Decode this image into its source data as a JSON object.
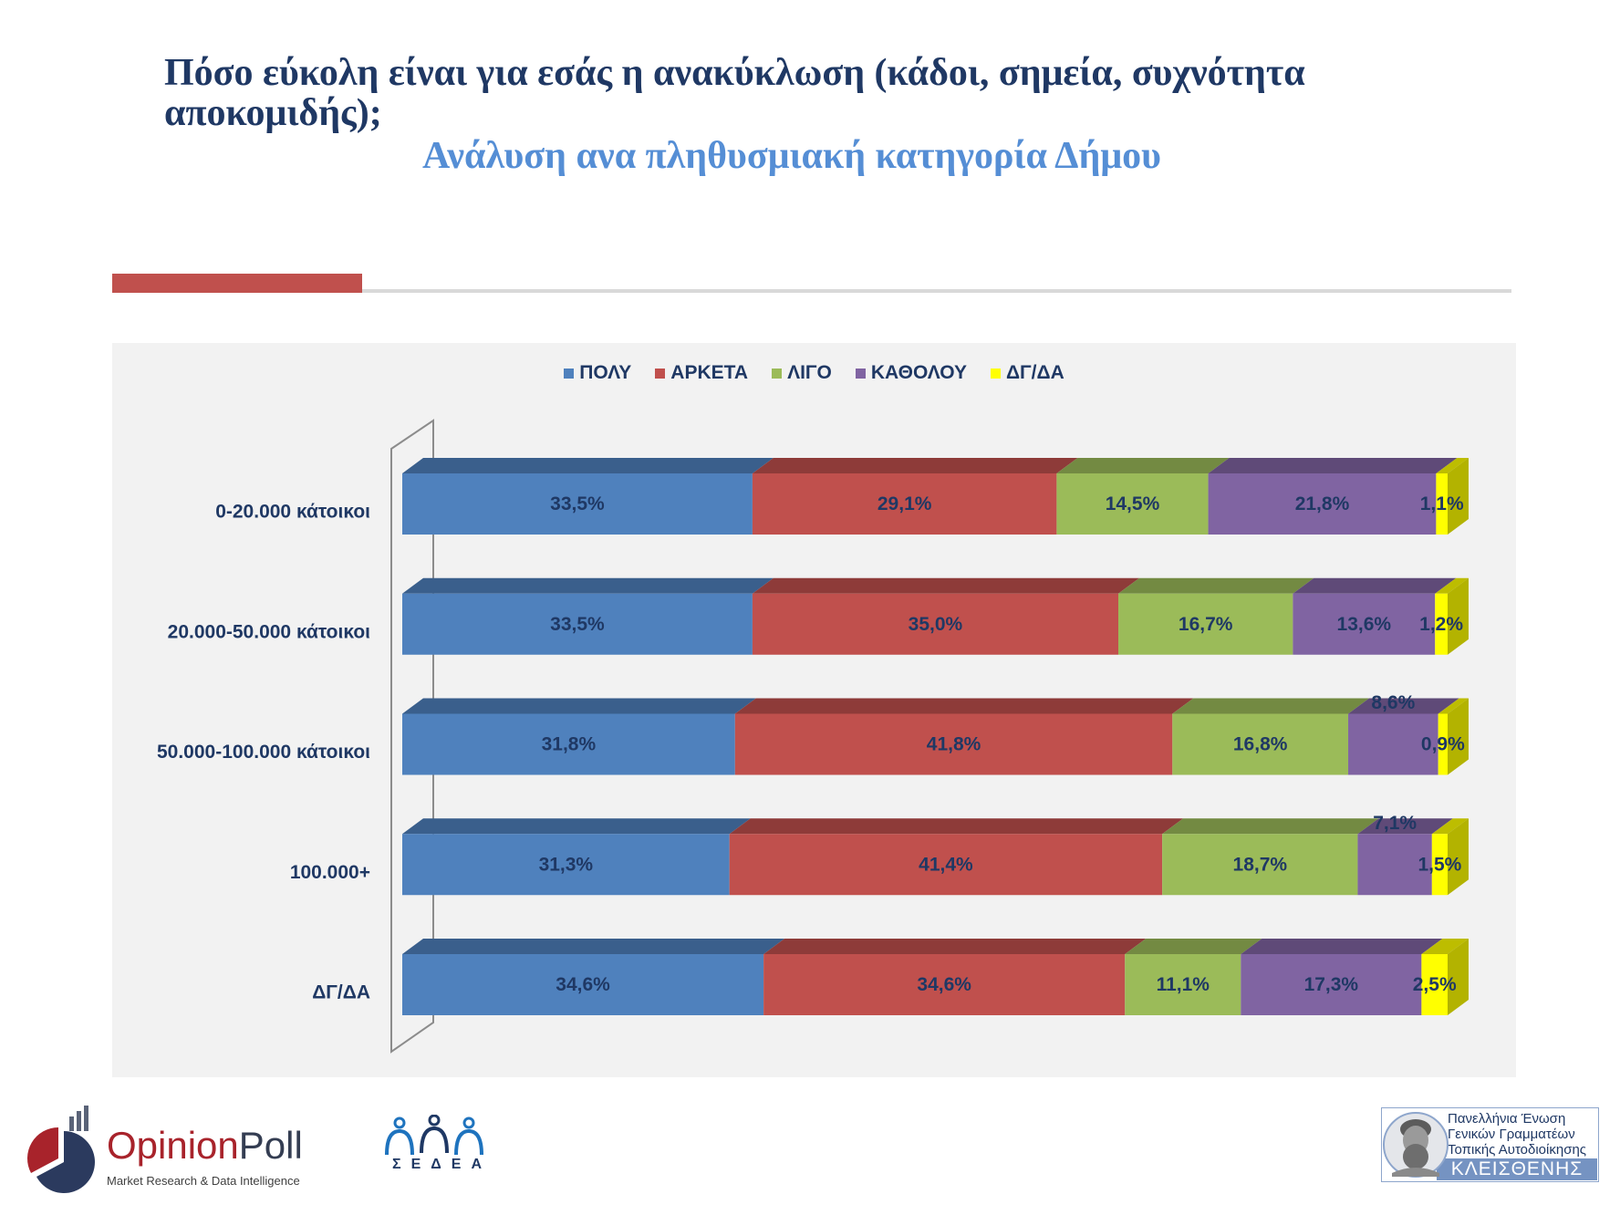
{
  "title": "Πόσο εύκολη είναι για εσάς η ανακύκλωση (κάδοι, σημεία, συχνότητα αποκομιδής);",
  "subtitle": "Ανάλυση ανα πληθυσμιακή κατηγορία Δήμου",
  "colors": {
    "accent": "#c0504d",
    "title": "#1f3864",
    "subtitle": "#558ed5",
    "chart_background": "#f2f2f2"
  },
  "chart_data": {
    "type": "bar",
    "orientation": "horizontal",
    "stacked": true,
    "style": "3d",
    "legend": "top",
    "grid": false,
    "xlim": [
      0,
      100
    ],
    "categories": [
      "0-20.000 κάτοικοι",
      "20.000-50.000 κάτοικοι",
      "50.000-100.000 κάτοικοι",
      "100.000+",
      "ΔΓ/ΔΑ"
    ],
    "series": [
      {
        "name": "ΠΟΛΥ",
        "color": "#4f81bd",
        "values": [
          33.5,
          33.5,
          31.8,
          31.3,
          34.6
        ],
        "labels": [
          "33,5%",
          "33,5%",
          "31,8%",
          "31,3%",
          "34,6%"
        ]
      },
      {
        "name": "ΑΡΚΕΤΑ",
        "color": "#c0504d",
        "values": [
          29.1,
          35.0,
          41.8,
          41.4,
          34.6
        ],
        "labels": [
          "29,1%",
          "35,0%",
          "41,8%",
          "41,4%",
          "34,6%"
        ]
      },
      {
        "name": "ΛΙΓΟ",
        "color": "#9bbb59",
        "values": [
          14.5,
          16.7,
          16.8,
          18.7,
          11.1
        ],
        "labels": [
          "14,5%",
          "16,7%",
          "16,8%",
          "18,7%",
          "11,1%"
        ]
      },
      {
        "name": "ΚΑΘΟΛΟΥ",
        "color": "#8064a2",
        "values": [
          21.8,
          13.6,
          8.6,
          7.1,
          17.3
        ],
        "labels": [
          "21,8%",
          "13,6%",
          "8,6%",
          "7,1%",
          "17,3%"
        ]
      },
      {
        "name": "ΔΓ/ΔΑ",
        "color": "#ffff00",
        "values": [
          1.1,
          1.2,
          0.9,
          1.5,
          2.5
        ],
        "labels": [
          "1,1%",
          "1,2%",
          "0,9%",
          "1,5%",
          "2,5%"
        ]
      }
    ]
  },
  "logos": {
    "opinionpoll": {
      "name_part1": "Opinion",
      "name_part2": "Poll",
      "tagline": "Market Research & Data Intelligence"
    },
    "sedea": {
      "text": "ΣΕΔΕΑ"
    },
    "kleisthenis": {
      "lines": [
        "Πανελλήνια Ένωση",
        "Γενικών Γραμματέων",
        "Τοπικής Αυτοδιοίκησης"
      ],
      "name": "ΚΛΕΙΣΘΕΝΗΣ"
    }
  }
}
